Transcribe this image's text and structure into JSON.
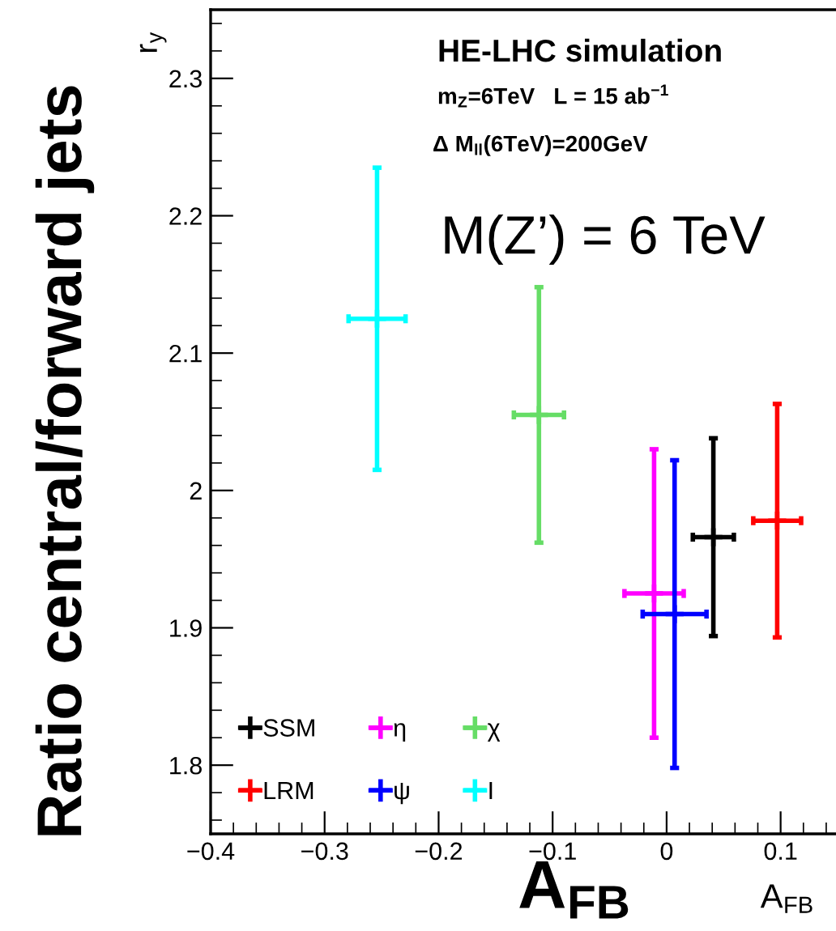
{
  "chart_data": {
    "type": "scatter",
    "xlabel": "A$_{FB}$",
    "ylabel": "r$_{y}$",
    "annotations": [
      "HE-LHC simulation",
      "m$_{Z}$=6TeV   L = 15 ab$^{−1}$",
      "Δ M$_{ll}$(6TeV)=200GeV",
      "M(Z’) = 6 TeV",
      "Ratio central/forward jets",
      "A$_{FB}$"
    ],
    "series": [
      {
        "name": "SSM",
        "color": "#000000",
        "x": [
          0.041
        ],
        "values": [
          1.966
        ],
        "errors": [
          0.072
        ],
        "xerrors": [
          0.018
        ]
      },
      {
        "name": "LRM",
        "color": "#ff0000",
        "x": [
          0.097
        ],
        "values": [
          1.978
        ],
        "errors": [
          0.085
        ],
        "xerrors": [
          0.021
        ]
      },
      {
        "name": "η",
        "color": "#ff00ff",
        "x": [
          -0.011
        ],
        "values": [
          1.925
        ],
        "errors": [
          0.105
        ],
        "xerrors": [
          0.026
        ]
      },
      {
        "name": "ψ",
        "color": "#0000ff",
        "x": [
          0.007
        ],
        "values": [
          1.91
        ],
        "errors": [
          0.112
        ],
        "xerrors": [
          0.028
        ]
      },
      {
        "name": "χ",
        "color": "#66dd66",
        "x": [
          -0.112
        ],
        "values": [
          2.055
        ],
        "errors": [
          0.093
        ],
        "xerrors": [
          0.022
        ]
      },
      {
        "name": "I",
        "color": "#00ffff",
        "x": [
          -0.254
        ],
        "values": [
          2.125
        ],
        "errors": [
          0.11
        ],
        "xerrors": [
          0.025
        ]
      }
    ],
    "xlim": [
      -0.4,
      0.15
    ],
    "xticks": [
      -0.4,
      -0.3,
      -0.2,
      -0.1,
      0,
      0.1
    ],
    "ylim": [
      1.75,
      2.35
    ],
    "yticks": [
      1.8,
      1.9,
      {
        "value": 2.0,
        "label": "2"
      },
      2.1,
      2.2,
      2.3
    ],
    "grid": false,
    "legend": "bottom left",
    "marker": "cross"
  }
}
